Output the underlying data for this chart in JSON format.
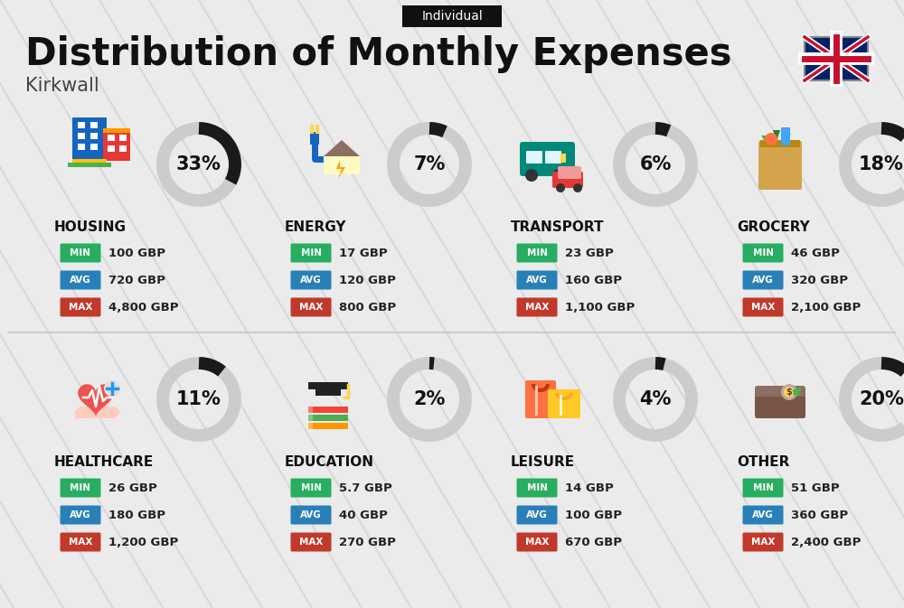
{
  "title": "Distribution of Monthly Expenses",
  "subtitle": "Kirkwall",
  "badge_text": "Individual",
  "bg_color": "#ebebeb",
  "categories": [
    {
      "name": "HOUSING",
      "pct": 33,
      "min_val": "100 GBP",
      "avg_val": "720 GBP",
      "max_val": "4,800 GBP",
      "row": 0,
      "col": 0
    },
    {
      "name": "ENERGY",
      "pct": 7,
      "min_val": "17 GBP",
      "avg_val": "120 GBP",
      "max_val": "800 GBP",
      "row": 0,
      "col": 1
    },
    {
      "name": "TRANSPORT",
      "pct": 6,
      "min_val": "23 GBP",
      "avg_val": "160 GBP",
      "max_val": "1,100 GBP",
      "row": 0,
      "col": 2
    },
    {
      "name": "GROCERY",
      "pct": 18,
      "min_val": "46 GBP",
      "avg_val": "320 GBP",
      "max_val": "2,100 GBP",
      "row": 0,
      "col": 3
    },
    {
      "name": "HEALTHCARE",
      "pct": 11,
      "min_val": "26 GBP",
      "avg_val": "180 GBP",
      "max_val": "1,200 GBP",
      "row": 1,
      "col": 0
    },
    {
      "name": "EDUCATION",
      "pct": 2,
      "min_val": "5.7 GBP",
      "avg_val": "40 GBP",
      "max_val": "270 GBP",
      "row": 1,
      "col": 1
    },
    {
      "name": "LEISURE",
      "pct": 4,
      "min_val": "14 GBP",
      "avg_val": "100 GBP",
      "max_val": "670 GBP",
      "row": 1,
      "col": 2
    },
    {
      "name": "OTHER",
      "pct": 20,
      "min_val": "51 GBP",
      "avg_val": "360 GBP",
      "max_val": "2,400 GBP",
      "row": 1,
      "col": 3
    }
  ],
  "min_color": "#27ae60",
  "avg_color": "#2980b9",
  "max_color": "#c0392b",
  "arc_dark": "#1a1a1a",
  "arc_light": "#cccccc",
  "stripe_color": "#d8d8d8"
}
